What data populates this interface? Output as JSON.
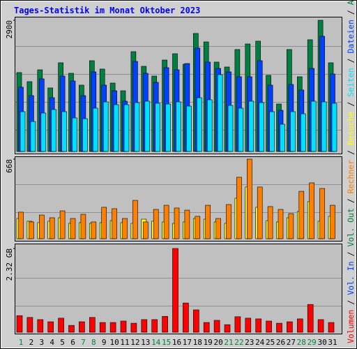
{
  "chart_data": {
    "type": "bar",
    "title": "Tages-Statistik im Monat Oktober 2023",
    "categories": [
      "1",
      "2",
      "3",
      "4",
      "5",
      "6",
      "7",
      "8",
      "9",
      "10",
      "11",
      "12",
      "13",
      "14",
      "15",
      "16",
      "17",
      "18",
      "19",
      "20",
      "21",
      "22",
      "23",
      "24",
      "25",
      "26",
      "27",
      "28",
      "29",
      "30",
      "31"
    ],
    "category_colors": [
      "#008040",
      "#000000",
      "#000000",
      "#000000",
      "#000000",
      "#000000",
      "#008040",
      "#008040",
      "#000000",
      "#000000",
      "#000000",
      "#000000",
      "#000000",
      "#008040",
      "#008040",
      "#000000",
      "#000000",
      "#000000",
      "#000000",
      "#000000",
      "#008040",
      "#008040",
      "#000000",
      "#000000",
      "#000000",
      "#000000",
      "#000000",
      "#008040",
      "#008040",
      "#000000",
      "#000000"
    ],
    "legend_separator": " / ",
    "grid": true,
    "panels": [
      {
        "ylim": [
          0,
          2900
        ],
        "yticks": [
          2900
        ],
        "series": [
          {
            "name": "Seiten",
            "color": "#00e0ff",
            "values": [
              880,
              663,
              849,
              926,
              880,
              741,
              725,
              957,
              1096,
              1034,
              1034,
              1080,
              1111,
              1065,
              1049,
              1096,
              1003,
              1188,
              1142,
              1697,
              1018,
              957,
              1111,
              1080,
              880,
              602,
              880,
              833,
              1111,
              1096,
              1065
            ]
          },
          {
            "name": "Dateien",
            "color": "#0040ff",
            "values": [
              1420,
              1234,
              1605,
              1188,
              1666,
              1558,
              1234,
              1759,
              1466,
              1342,
              1111,
              1990,
              1728,
              1528,
              1852,
              1805,
              1944,
              2284,
              1975,
              1836,
              1759,
              1651,
              1651,
              2006,
              1466,
              910,
              1481,
              1358,
              1836,
              2546,
              1713
            ]
          },
          {
            "name": "Anfragen",
            "color": "#008040",
            "values": [
              1744,
              1543,
              1805,
              1404,
              1960,
              1728,
              1466,
              2006,
              1821,
              1512,
              1342,
              2206,
              1882,
              1666,
              2021,
              2160,
              1929,
              2608,
              2422,
              1975,
              1867,
              2253,
              2376,
              2438,
              1682,
              1049,
              2253,
              1651,
              2469,
              2900,
              1960
            ]
          }
        ]
      },
      {
        "ylim": [
          0,
          668
        ],
        "yticks": [
          668
        ],
        "series": [
          {
            "name": "Rechner",
            "color": "#ff8000",
            "values": [
              223,
              141,
              199,
              176,
              234,
              170,
              205,
              141,
              264,
              252,
              170,
              322,
              141,
              246,
              281,
              258,
              240,
              188,
              281,
              170,
              287,
              516,
              668,
              434,
              270,
              246,
              211,
              398,
              469,
              422,
              281
            ]
          },
          {
            "name": "Besuche",
            "color": "#ffff00",
            "values": [
              170,
              147,
              135,
              147,
              176,
              129,
              135,
              129,
              135,
              152,
              135,
              129,
              164,
              147,
              141,
              129,
              141,
              170,
              164,
              141,
              129,
              340,
              434,
              264,
              152,
              141,
              176,
              229,
              311,
              147,
              188
            ]
          }
        ]
      },
      {
        "ylim": [
          0,
          2.32
        ],
        "yticks": [
          {
            "value": 2.32,
            "label": "2.32 GB"
          }
        ],
        "series": [
          {
            "name": "Volumen",
            "color": "#ff0000",
            "values": [
              0.46,
              0.41,
              0.35,
              0.29,
              0.39,
              0.19,
              0.29,
              0.41,
              0.27,
              0.27,
              0.31,
              0.25,
              0.35,
              0.35,
              0.44,
              2.32,
              0.81,
              0.62,
              0.27,
              0.33,
              0.21,
              0.43,
              0.39,
              0.37,
              0.31,
              0.25,
              0.29,
              0.37,
              0.77,
              0.35,
              0.27
            ]
          }
        ],
        "other_legend": [
          {
            "name": "Vol. In",
            "color": "#0040ff"
          },
          {
            "name": "Vol. Out",
            "color": "#008040"
          }
        ]
      }
    ]
  }
}
